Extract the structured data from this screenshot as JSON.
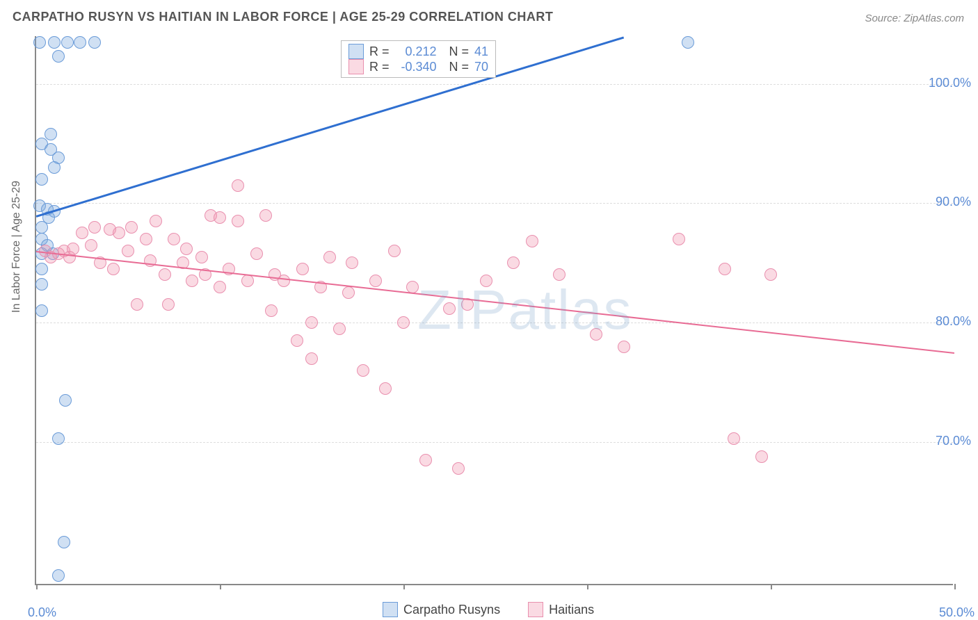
{
  "title": "CARPATHO RUSYN VS HAITIAN IN LABOR FORCE | AGE 25-29 CORRELATION CHART",
  "source": "Source: ZipAtlas.com",
  "ylabel": "In Labor Force | Age 25-29",
  "watermark": "ZIPatlas",
  "chart": {
    "type": "scatter",
    "xlim": [
      0,
      50
    ],
    "ylim": [
      58,
      104
    ],
    "ytick_values": [
      70,
      80,
      90,
      100
    ],
    "ytick_labels": [
      "70.0%",
      "80.0%",
      "90.0%",
      "100.0%"
    ],
    "xtick_values": [
      0,
      10,
      20,
      30,
      40,
      50
    ],
    "xtick_label_0": "0.0%",
    "xtick_label_50": "50.0%",
    "grid_color": "#dddddd",
    "axis_color": "#888888",
    "background_color": "#ffffff",
    "series": [
      {
        "name": "Carpatho Rusyns",
        "fill": "rgba(120,165,220,0.35)",
        "stroke": "#6a9bd8",
        "marker_radius": 9,
        "R": "0.212",
        "N": "41",
        "trend": {
          "x1": 0,
          "y1": 89,
          "x2": 32,
          "y2": 104,
          "color": "#2f6fd0",
          "width": 2.5
        },
        "points": [
          [
            0.2,
            103.5
          ],
          [
            1.0,
            103.5
          ],
          [
            1.7,
            103.5
          ],
          [
            2.4,
            103.5
          ],
          [
            3.2,
            103.5
          ],
          [
            1.2,
            102.3
          ],
          [
            0.3,
            95.0
          ],
          [
            0.8,
            95.8
          ],
          [
            0.8,
            94.5
          ],
          [
            1.2,
            93.8
          ],
          [
            1.0,
            93.0
          ],
          [
            0.3,
            92.0
          ],
          [
            0.2,
            89.8
          ],
          [
            0.6,
            89.5
          ],
          [
            1.0,
            89.3
          ],
          [
            0.3,
            88.0
          ],
          [
            0.7,
            88.8
          ],
          [
            0.3,
            87.0
          ],
          [
            0.6,
            86.5
          ],
          [
            0.3,
            85.8
          ],
          [
            0.9,
            85.8
          ],
          [
            0.3,
            84.5
          ],
          [
            0.3,
            83.2
          ],
          [
            0.3,
            81.0
          ],
          [
            1.6,
            73.5
          ],
          [
            1.2,
            70.3
          ],
          [
            1.5,
            61.6
          ],
          [
            1.2,
            58.8
          ],
          [
            35.5,
            103.5
          ]
        ]
      },
      {
        "name": "Haitians",
        "fill": "rgba(240,150,175,0.35)",
        "stroke": "#e98fae",
        "marker_radius": 9,
        "R": "-0.340",
        "N": "70",
        "trend": {
          "x1": 0,
          "y1": 86,
          "x2": 50,
          "y2": 77.5,
          "color": "#e86b94",
          "width": 2
        },
        "points": [
          [
            0.5,
            86.0
          ],
          [
            0.8,
            85.5
          ],
          [
            1.2,
            85.8
          ],
          [
            1.5,
            86.0
          ],
          [
            1.8,
            85.5
          ],
          [
            2.0,
            86.2
          ],
          [
            2.5,
            87.5
          ],
          [
            3.0,
            86.5
          ],
          [
            3.2,
            88.0
          ],
          [
            3.5,
            85.0
          ],
          [
            4.0,
            87.8
          ],
          [
            4.2,
            84.5
          ],
          [
            4.5,
            87.5
          ],
          [
            5.0,
            86.0
          ],
          [
            5.2,
            88.0
          ],
          [
            5.5,
            81.5
          ],
          [
            6.0,
            87.0
          ],
          [
            6.2,
            85.2
          ],
          [
            6.5,
            88.5
          ],
          [
            7.0,
            84.0
          ],
          [
            7.2,
            81.5
          ],
          [
            7.5,
            87.0
          ],
          [
            8.0,
            85.0
          ],
          [
            8.2,
            86.2
          ],
          [
            8.5,
            83.5
          ],
          [
            9.0,
            85.5
          ],
          [
            9.2,
            84.0
          ],
          [
            9.5,
            89.0
          ],
          [
            10.0,
            83.0
          ],
          [
            10.0,
            88.8
          ],
          [
            10.5,
            84.5
          ],
          [
            11.0,
            91.5
          ],
          [
            11.0,
            88.5
          ],
          [
            11.5,
            83.5
          ],
          [
            12.0,
            85.8
          ],
          [
            12.5,
            89.0
          ],
          [
            12.8,
            81.0
          ],
          [
            13.0,
            84.0
          ],
          [
            13.5,
            83.5
          ],
          [
            14.2,
            78.5
          ],
          [
            14.5,
            84.5
          ],
          [
            15.0,
            77.0
          ],
          [
            15.0,
            80.0
          ],
          [
            15.5,
            83.0
          ],
          [
            16.0,
            85.5
          ],
          [
            16.5,
            79.5
          ],
          [
            17.0,
            82.5
          ],
          [
            17.2,
            85.0
          ],
          [
            17.8,
            76.0
          ],
          [
            18.5,
            83.5
          ],
          [
            19.0,
            74.5
          ],
          [
            19.5,
            86.0
          ],
          [
            20.0,
            80.0
          ],
          [
            20.5,
            83.0
          ],
          [
            21.2,
            68.5
          ],
          [
            22.5,
            81.2
          ],
          [
            23.0,
            67.8
          ],
          [
            23.5,
            81.5
          ],
          [
            24.5,
            83.5
          ],
          [
            26.0,
            85.0
          ],
          [
            27.0,
            86.8
          ],
          [
            28.5,
            84.0
          ],
          [
            30.5,
            79.0
          ],
          [
            32.0,
            78.0
          ],
          [
            35.0,
            87.0
          ],
          [
            37.5,
            84.5
          ],
          [
            38.0,
            70.3
          ],
          [
            39.5,
            68.8
          ],
          [
            40.0,
            84.0
          ]
        ]
      }
    ]
  },
  "legend_stats": {
    "value_color": "#5b8bd4"
  },
  "legend_bottom": {
    "items": [
      "Carpatho Rusyns",
      "Haitians"
    ]
  }
}
